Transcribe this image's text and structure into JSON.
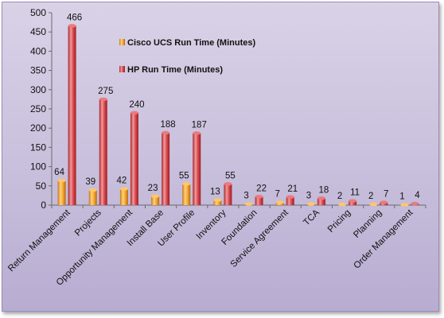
{
  "chart_data": {
    "type": "bar",
    "ylim": [
      0,
      500
    ],
    "yticks": [
      0,
      50,
      100,
      150,
      200,
      250,
      300,
      350,
      400,
      450,
      500
    ],
    "categories": [
      "Return Management",
      "Projects",
      "Opportunity Management",
      "Install Base",
      "User Profile",
      "Inventory",
      "Foundation",
      "Service Agreement",
      "TCA",
      "Pricing",
      "Planning",
      "Order Management"
    ],
    "series": [
      {
        "name": "Cisco UCS Run Time (Minutes)",
        "color": "#f0a530",
        "values": [
          64,
          39,
          42,
          23,
          55,
          13,
          3,
          7,
          3,
          2,
          2,
          1
        ]
      },
      {
        "name": "HP Run Time (Minutes)",
        "color": "#d9484d",
        "values": [
          466,
          275,
          240,
          188,
          187,
          55,
          22,
          21,
          18,
          11,
          7,
          4
        ]
      }
    ],
    "legend_placement": "top-center",
    "grid": false
  }
}
